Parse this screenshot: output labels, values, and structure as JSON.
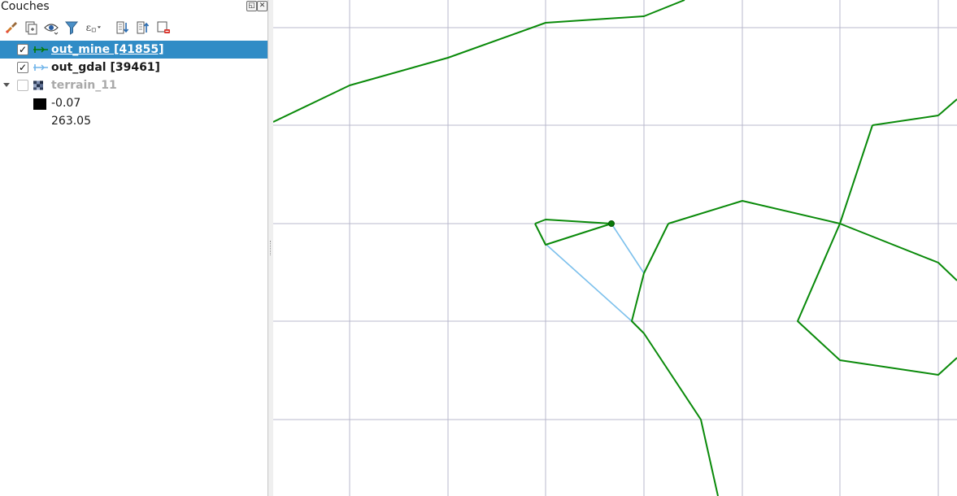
{
  "panel": {
    "title": "Couches",
    "float_icon": "float-window-icon",
    "close_icon": "close-icon"
  },
  "toolbar": {
    "icons": [
      "style-brush-icon",
      "add-group-icon",
      "visibility-eye-icon",
      "filter-legend-icon",
      "expression-filter-icon",
      "expand-all-icon",
      "collapse-all-icon",
      "remove-layer-icon"
    ]
  },
  "layers": [
    {
      "name": "out_mine [41855]",
      "checked": true,
      "selected": true,
      "color": "#007a00",
      "icon": "line-layer-icon"
    },
    {
      "name": "out_gdal [39461]",
      "checked": true,
      "selected": false,
      "color": "#6fb4ea",
      "icon": "line-layer-icon"
    },
    {
      "name": "terrain_11",
      "checked": false,
      "selected": false,
      "icon": "raster-layer-icon"
    }
  ],
  "legend": {
    "min_value": "-0.07",
    "max_value": "263.05",
    "min_color": "#000000"
  },
  "colors": {
    "selection": "#308cc6",
    "grid": "#b8b8cc",
    "green_line": "#0a8a0a",
    "blue_line": "#7cc0ec"
  }
}
